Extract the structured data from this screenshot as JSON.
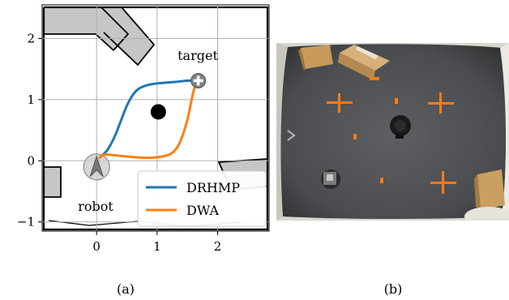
{
  "figure": {
    "panel_a": {
      "caption": "(a)",
      "annotations": {
        "target": "target",
        "robot": "robot"
      },
      "chart_data": {
        "type": "line",
        "xlim": [
          -0.9,
          2.85
        ],
        "ylim": [
          -1.15,
          2.55
        ],
        "xticks": [
          0,
          1,
          2
        ],
        "yticks": [
          -1,
          0,
          1,
          2
        ],
        "tick_labels": {
          "x": [
            "0",
            "1",
            "2"
          ],
          "y": [
            "−1",
            "0",
            "1",
            "2"
          ]
        },
        "grid": true,
        "legend_position": "bottom-right",
        "colors": {
          "DRHMP": "#1f77b4",
          "DWA": "#ff7f0e"
        },
        "series": [
          {
            "name": "DRHMP",
            "x": [
              0.05,
              0.18,
              0.3,
              0.4,
              0.5,
              0.6,
              0.7,
              0.85,
              1.05,
              1.3,
              1.5,
              1.68
            ],
            "y": [
              0.05,
              0.18,
              0.4,
              0.65,
              0.9,
              1.08,
              1.18,
              1.24,
              1.27,
              1.29,
              1.31,
              1.31
            ]
          },
          {
            "name": "DWA",
            "x": [
              0.05,
              0.12,
              0.3,
              0.6,
              0.9,
              1.2,
              1.35,
              1.45,
              1.52,
              1.57,
              1.62,
              1.68
            ],
            "y": [
              0.05,
              0.1,
              0.09,
              0.06,
              0.05,
              0.1,
              0.25,
              0.5,
              0.75,
              1.0,
              1.2,
              1.31
            ]
          }
        ],
        "target": {
          "x": 1.68,
          "y": 1.31
        },
        "obstacle": {
          "x": 1.02,
          "y": 0.8
        },
        "robot": {
          "x": 0.0,
          "y": -0.1
        }
      }
    },
    "panel_b": {
      "caption": "(b)"
    }
  }
}
